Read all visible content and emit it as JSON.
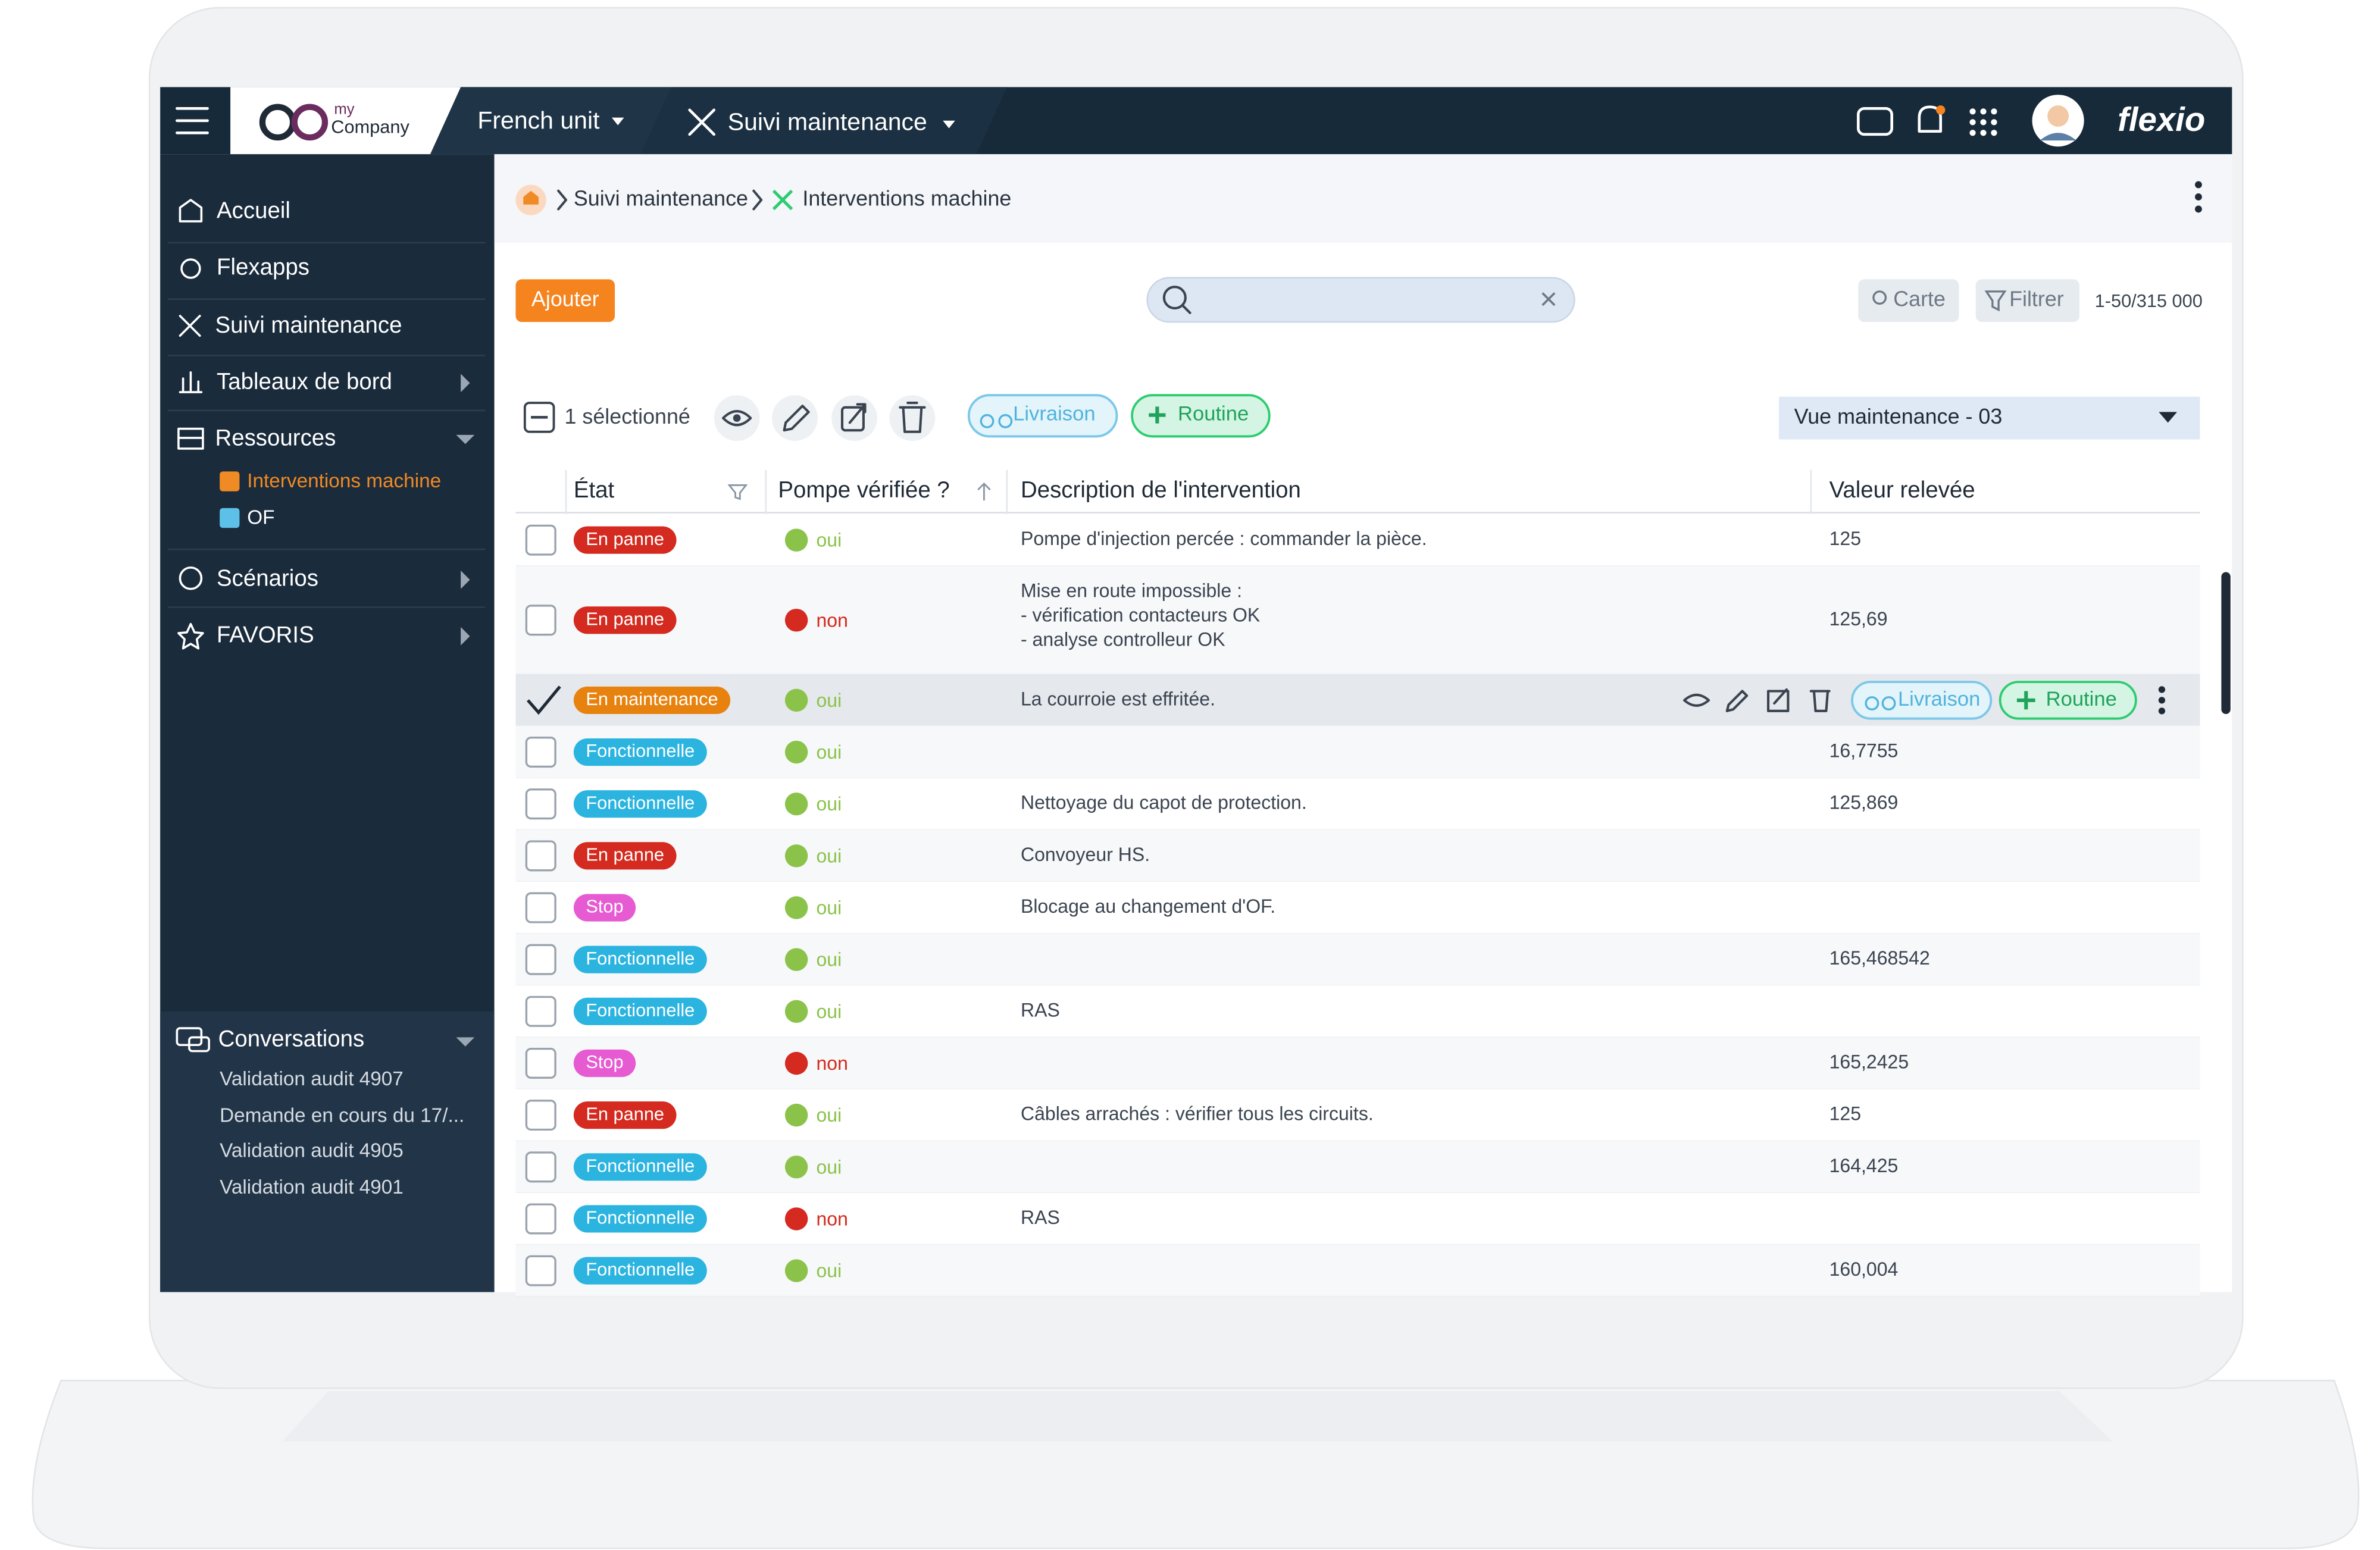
{
  "topbar": {
    "logo_small": "my",
    "logo_name": "Company",
    "unit": "French unit",
    "app": "Suivi maintenance",
    "brand": "flexio"
  },
  "sidebar": {
    "menu": [
      "Accueil",
      "Flexapps",
      "Suivi maintenance",
      "Tableaux de bord",
      "Ressources"
    ],
    "submenu": [
      "Interventions machine",
      "OF"
    ],
    "menu2": [
      "Scénarios",
      "FAVORIS"
    ],
    "conversations": {
      "title": "Conversations",
      "items": [
        "Validation audit 4907",
        "Demande en cours du 17/...",
        "Validation audit 4905",
        "Validation audit 4901"
      ]
    }
  },
  "breadcrumb": [
    "Suivi maintenance",
    "Interventions machine"
  ],
  "toolbar": {
    "add": "Ajouter",
    "map": "Carte",
    "filter": "Filtrer",
    "count": "1-50/315 000"
  },
  "selection": {
    "label": "1 sélectionné",
    "tags": [
      "Livraison",
      "Routine"
    ],
    "view": "Vue maintenance - 03"
  },
  "table": {
    "columns": [
      "État",
      "Pompe vérifiée ?",
      "Description de l'intervention",
      "Valeur relevée"
    ],
    "rows": [
      {
        "state": {
          "label": "En panne",
          "color": "#d42a1f"
        },
        "pump": {
          "label": "oui",
          "color": "#8bc34a"
        },
        "description": "Pompe d'injection percée : commander la pièce.",
        "value": "125"
      },
      {
        "state": {
          "label": "En panne",
          "color": "#d42a1f"
        },
        "pump": {
          "label": "non",
          "color": "#d42a1f"
        },
        "description": [
          "Mise en route impossible :",
          "- vérification contacteurs OK",
          "- analyse controlleur OK"
        ],
        "value": "125,69"
      },
      {
        "state": {
          "label": "En maintenance",
          "color": "#e8820e"
        },
        "pump": {
          "label": "oui",
          "color": "#8bc34a"
        },
        "description": "La courroie est effritée.",
        "value": null,
        "selected": true,
        "actions": [
          "Livraison",
          "Routine"
        ]
      },
      {
        "state": {
          "label": "Fonctionnelle",
          "color": "#2bb4e0"
        },
        "pump": {
          "label": "oui",
          "color": "#8bc34a"
        },
        "description": null,
        "value": "16,7755"
      },
      {
        "state": {
          "label": "Fonctionnelle",
          "color": "#2bb4e0"
        },
        "pump": {
          "label": "oui",
          "color": "#8bc34a"
        },
        "description": "Nettoyage du capot de protection.",
        "value": "125,869"
      },
      {
        "state": {
          "label": "En panne",
          "color": "#d42a1f"
        },
        "pump": {
          "label": "oui",
          "color": "#8bc34a"
        },
        "description": "Convoyeur HS.",
        "value": null
      },
      {
        "state": {
          "label": "Stop",
          "color": "#e65bd2"
        },
        "pump": {
          "label": "oui",
          "color": "#8bc34a"
        },
        "description": "Blocage au changement d'OF.",
        "value": null
      },
      {
        "state": {
          "label": "Fonctionnelle",
          "color": "#2bb4e0"
        },
        "pump": {
          "label": "oui",
          "color": "#8bc34a"
        },
        "description": null,
        "value": "165,468542"
      },
      {
        "state": {
          "label": "Fonctionnelle",
          "color": "#2bb4e0"
        },
        "pump": {
          "label": "oui",
          "color": "#8bc34a"
        },
        "description": "RAS",
        "value": null
      },
      {
        "state": {
          "label": "Stop",
          "color": "#e65bd2"
        },
        "pump": {
          "label": "non",
          "color": "#d42a1f"
        },
        "description": null,
        "value": "165,2425"
      },
      {
        "state": {
          "label": "En panne",
          "color": "#d42a1f"
        },
        "pump": {
          "label": "oui",
          "color": "#8bc34a"
        },
        "description": "Câbles arrachés : vérifier tous les circuits.",
        "value": "125"
      },
      {
        "state": {
          "label": "Fonctionnelle",
          "color": "#2bb4e0"
        },
        "pump": {
          "label": "oui",
          "color": "#8bc34a"
        },
        "description": null,
        "value": "164,425"
      },
      {
        "state": {
          "label": "Fonctionnelle",
          "color": "#2bb4e0"
        },
        "pump": {
          "label": "non",
          "color": "#d42a1f"
        },
        "description": "RAS",
        "value": null
      },
      {
        "state": {
          "label": "Fonctionnelle",
          "color": "#2bb4e0"
        },
        "pump": {
          "label": "oui",
          "color": "#8bc34a"
        },
        "description": null,
        "value": "160,004"
      }
    ]
  }
}
